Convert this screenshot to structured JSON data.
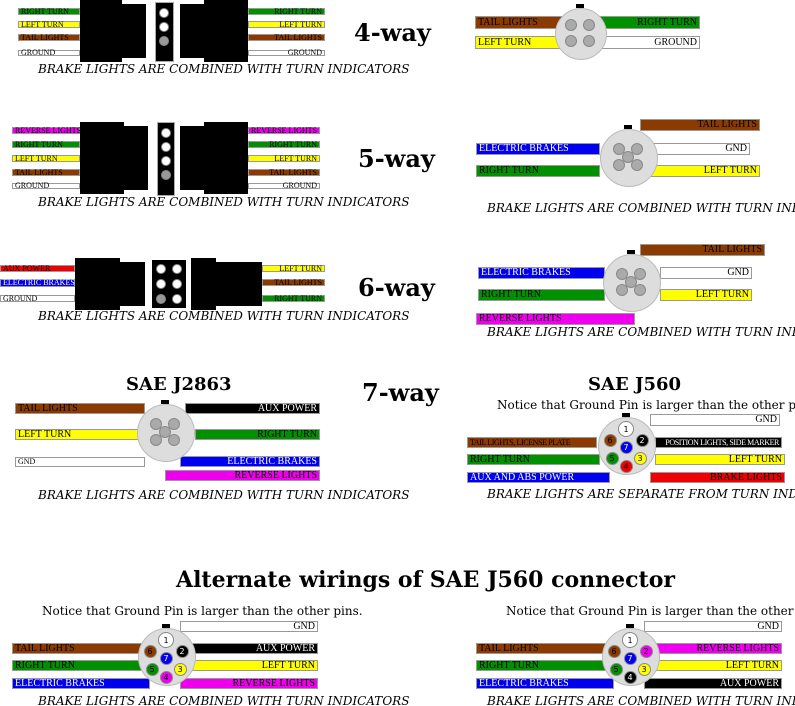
{
  "colors": {
    "brown": "#8b3a00",
    "green": "#009000",
    "yellow": "#ffff00",
    "white": "#ffffff",
    "blue": "#0000ee",
    "magenta": "#ee00ee",
    "red": "#ee0000",
    "black": "#000000",
    "gray": "#dddddd"
  },
  "headings": {
    "four": "4-way",
    "five": "5-way",
    "six": "6-way",
    "seven": "7-way",
    "j2863": "SAE J2863",
    "j560": "SAE J560",
    "alternate": "Alternate wirings of SAE J560 connector"
  },
  "diagrams": [
    {
      "caption": "BRAKE LIGHTS ARE COMBINED WITH TURN INDICATORS",
      "wires": [
        {
          "label": "RIGHT TURN",
          "color": "green"
        },
        {
          "label": "LEFT TURN",
          "color": "yellow"
        },
        {
          "label": "TAIL LIGHTS",
          "color": "brown"
        },
        {
          "label": "GROUND",
          "color": "white"
        },
        {
          "label": "RIGHT TURN",
          "color": "green"
        },
        {
          "label": "LEFT TURN",
          "color": "yellow"
        },
        {
          "label": "TAIL LIGHTS",
          "color": "brown"
        },
        {
          "label": "GROUND",
          "color": "white"
        }
      ]
    },
    {
      "caption": "",
      "wires": [
        {
          "label": "TAIL LIGHTS",
          "color": "brown"
        },
        {
          "label": "LEFT TURN",
          "color": "yellow"
        },
        {
          "label": "RIGHT TURN",
          "color": "green"
        },
        {
          "label": "GROUND",
          "color": "white"
        }
      ]
    },
    {
      "caption": "BRAKE LIGHTS ARE COMBINED WITH TURN INDICATORS",
      "wires": [
        {
          "label": "REVERSE LIGHTS",
          "color": "magenta"
        },
        {
          "label": "RIGHT TURN",
          "color": "green"
        },
        {
          "label": "LEFT TURN",
          "color": "yellow"
        },
        {
          "label": "TAIL LIGHTS",
          "color": "brown"
        },
        {
          "label": "GROUND",
          "color": "white"
        },
        {
          "label": "REVERSE LIGHTS",
          "color": "magenta"
        },
        {
          "label": "RIGHT TURN",
          "color": "green"
        },
        {
          "label": "LEFT TURN",
          "color": "yellow"
        },
        {
          "label": "TAIL LIGHTS",
          "color": "brown"
        },
        {
          "label": "GROUND",
          "color": "white"
        }
      ]
    },
    {
      "caption": "BRAKE LIGHTS ARE COMBINED WITH TURN INDICATORS",
      "wires": [
        {
          "label": "TAIL LIGHTS",
          "color": "brown"
        },
        {
          "label": "ELECTRIC BRAKES",
          "color": "blue"
        },
        {
          "label": "GND",
          "color": "white"
        },
        {
          "label": "RIGHT TURN",
          "color": "green"
        },
        {
          "label": "LEFT TURN",
          "color": "yellow"
        }
      ]
    },
    {
      "caption": "BRAKE LIGHTS ARE COMBINED WITH TURN INDICATORS",
      "wires": [
        {
          "label": "AUX POWER",
          "color": "red"
        },
        {
          "label": "ELECTRIC BRAKES",
          "color": "blue"
        },
        {
          "label": "GROUND",
          "color": "white"
        },
        {
          "label": "LEFT TURN",
          "color": "yellow"
        },
        {
          "label": "TAIL LIGHTS",
          "color": "brown"
        },
        {
          "label": "RIGHT TURN",
          "color": "green"
        }
      ]
    },
    {
      "caption": "BRAKE LIGHTS ARE COMBINED WITH TURN INDICATORS",
      "wires": [
        {
          "label": "TAIL LIGHTS",
          "color": "brown"
        },
        {
          "label": "ELECTRIC BRAKES",
          "color": "blue"
        },
        {
          "label": "GND",
          "color": "white"
        },
        {
          "label": "RIGHT TURN",
          "color": "green"
        },
        {
          "label": "LEFT TURN",
          "color": "yellow"
        },
        {
          "label": "REVERSE LIGHTS",
          "color": "magenta"
        }
      ]
    },
    {
      "caption": "BRAKE LIGHTS ARE COMBINED WITH TURN INDICATORS",
      "wires": [
        {
          "label": "TAIL LIGHTS",
          "color": "brown"
        },
        {
          "label": "LEFT TURN",
          "color": "yellow"
        },
        {
          "label": "GND",
          "color": "white"
        },
        {
          "label": "AUX POWER",
          "color": "black"
        },
        {
          "label": "RIGHT TURN",
          "color": "green"
        },
        {
          "label": "ELECTRIC BRAKES",
          "color": "blue"
        },
        {
          "label": "REVERSE LIGHTS",
          "color": "magenta"
        }
      ]
    },
    {
      "notice": "Notice that Ground Pin is larger than the other pins.",
      "caption": "BRAKE LIGHTS ARE SEPARATE FROM TURN INDICATORS",
      "wires": [
        {
          "label": "GND",
          "color": "white"
        },
        {
          "label": "TAIL LIGHTS, LICENSE PLATE",
          "color": "brown"
        },
        {
          "label": "POSITION LIGHTS, SIDE MARKER",
          "color": "black"
        },
        {
          "label": "RIGHT TURN",
          "color": "green"
        },
        {
          "label": "LEFT TURN",
          "color": "yellow"
        },
        {
          "label": "AUX AND ABS POWER",
          "color": "blue"
        },
        {
          "label": "BRAKE LIGHTS",
          "color": "red"
        }
      ],
      "pins": [
        {
          "n": "1",
          "color": "white"
        },
        {
          "n": "2",
          "color": "black"
        },
        {
          "n": "3",
          "color": "yellow"
        },
        {
          "n": "4",
          "color": "red"
        },
        {
          "n": "5",
          "color": "green"
        },
        {
          "n": "6",
          "color": "brown"
        },
        {
          "n": "7",
          "color": "blue"
        }
      ]
    },
    {
      "notice": "Notice that Ground Pin is larger than the other pins.",
      "caption": "BRAKE LIGHTS ARE COMBINED WITH TURN INDICATORS",
      "wires": [
        {
          "label": "GND",
          "color": "white"
        },
        {
          "label": "TAIL LIGHTS",
          "color": "brown"
        },
        {
          "label": "AUX POWER",
          "color": "black"
        },
        {
          "label": "RIGHT TURN",
          "color": "green"
        },
        {
          "label": "LEFT TURN",
          "color": "yellow"
        },
        {
          "label": "ELECTRIC BRAKES",
          "color": "blue"
        },
        {
          "label": "REVERSE LIGHTS",
          "color": "magenta"
        }
      ],
      "pins": [
        {
          "n": "1",
          "color": "white"
        },
        {
          "n": "2",
          "color": "black"
        },
        {
          "n": "3",
          "color": "yellow"
        },
        {
          "n": "4",
          "color": "magenta"
        },
        {
          "n": "5",
          "color": "green"
        },
        {
          "n": "6",
          "color": "brown"
        },
        {
          "n": "7",
          "color": "blue"
        }
      ]
    },
    {
      "notice": "Notice that Ground Pin is larger than the other pins.",
      "caption": "BRAKE LIGHTS ARE COMBINED WITH TURN INDICATORS",
      "wires": [
        {
          "label": "GND",
          "color": "white"
        },
        {
          "label": "TAIL LIGHTS",
          "color": "brown"
        },
        {
          "label": "REVERSE LIGHTS",
          "color": "magenta"
        },
        {
          "label": "RIGHT TURN",
          "color": "green"
        },
        {
          "label": "LEFT TURN",
          "color": "yellow"
        },
        {
          "label": "ELECTRIC BRAKES",
          "color": "blue"
        },
        {
          "label": "AUX POWER",
          "color": "black"
        }
      ],
      "pins": [
        {
          "n": "1",
          "color": "white"
        },
        {
          "n": "2",
          "color": "magenta"
        },
        {
          "n": "3",
          "color": "yellow"
        },
        {
          "n": "4",
          "color": "black"
        },
        {
          "n": "5",
          "color": "green"
        },
        {
          "n": "6",
          "color": "brown"
        },
        {
          "n": "7",
          "color": "blue"
        }
      ]
    }
  ]
}
